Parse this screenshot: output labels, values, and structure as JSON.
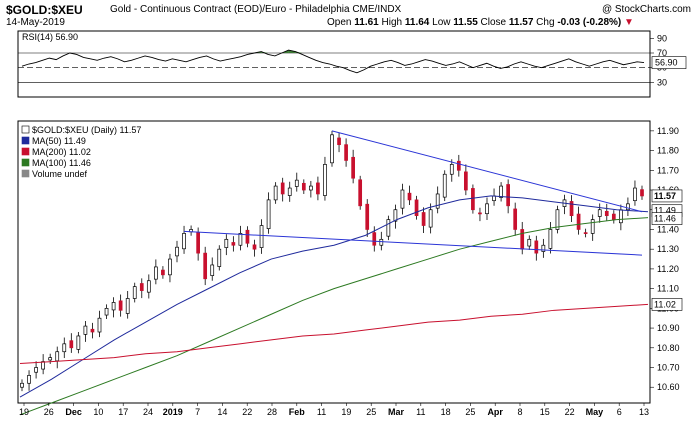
{
  "header": {
    "symbol": "$GOLD:$XEU",
    "description": "Gold - Continuous Contract (EOD)/Euro - Philadelphia CME/INDX",
    "date": "14-May-2019",
    "open_label": "Open",
    "open": "11.61",
    "high_label": "High",
    "high": "11.64",
    "low_label": "Low",
    "low": "11.55",
    "close_label": "Close",
    "close": "11.57",
    "chg_label": "Chg",
    "chg": "-0.03 (-0.28%)",
    "source": "@ StockCharts.com"
  },
  "colors": {
    "up_candle": "#ffffff",
    "down_candle": "#c8102e",
    "ma50": "#1f2a9c",
    "ma200": "#c8102e",
    "ma100": "#2d7a22",
    "trendline": "#2b35d6",
    "rsi_fill": "#3c7a35"
  },
  "chart_data": [
    {
      "type": "line",
      "name": "RSI(14) 56.90",
      "label": "RSI(14) 56.90",
      "ylim": [
        10,
        100
      ],
      "yticks": [
        90,
        70,
        50,
        30,
        10
      ],
      "reference_lines": [
        70,
        50,
        30
      ],
      "last_value_label": "56.90",
      "values": [
        52,
        55,
        57,
        60,
        63,
        61,
        66,
        70,
        68,
        64,
        62,
        60,
        63,
        65,
        62,
        58,
        60,
        63,
        66,
        64,
        61,
        59,
        62,
        60,
        58,
        61,
        64,
        66,
        62,
        59,
        61,
        63,
        65,
        68,
        70,
        72,
        68,
        66,
        70,
        74,
        72,
        68,
        64,
        60,
        57,
        55,
        52,
        50,
        46,
        43,
        47,
        52,
        55,
        58,
        60,
        57,
        53,
        55,
        58,
        61,
        59,
        56,
        53,
        55,
        58,
        54,
        50,
        53,
        56,
        52,
        49,
        51,
        55,
        58,
        55,
        52,
        50,
        53,
        56,
        59,
        62,
        58,
        55,
        52,
        55,
        58,
        60,
        57,
        54,
        56,
        58,
        56.9
      ]
    },
    {
      "type": "candlestick",
      "title": "$GOLD:$XEU (Daily) 11.57",
      "legend": [
        {
          "name": "$GOLD:$XEU (Daily) 11.57",
          "color": "#000000"
        },
        {
          "name": "MA(50) 11.49",
          "color": "#1f2a9c"
        },
        {
          "name": "MA(200) 11.02",
          "color": "#c8102e"
        },
        {
          "name": "MA(100) 11.46",
          "color": "#2d7a22"
        },
        {
          "name": "Volume undef",
          "color": "#888888"
        }
      ],
      "ylim": [
        10.52,
        11.95
      ],
      "yticks": [
        "11.90",
        "11.80",
        "11.70",
        "11.60",
        "11.50",
        "11.40",
        "11.30",
        "11.20",
        "11.10",
        "11.00",
        "10.90",
        "10.80",
        "10.70",
        "10.60"
      ],
      "x_labels": [
        "19",
        "26",
        "Dec",
        "10",
        "17",
        "24",
        "2019",
        "7",
        "14",
        "22",
        "28",
        "Feb",
        "11",
        "19",
        "25",
        "Mar",
        "11",
        "18",
        "25",
        "Apr",
        "8",
        "15",
        "22",
        "May",
        "6",
        "13"
      ],
      "x_label_bold": [
        "Dec",
        "2019",
        "Feb",
        "Mar",
        "Apr",
        "May"
      ],
      "price_badges": [
        {
          "text": "11.57",
          "value": 11.57,
          "bold": true
        },
        {
          "text": "11.49",
          "value": 11.495
        },
        {
          "text": "11.46",
          "value": 11.455
        },
        {
          "text": "11.02",
          "value": 11.02
        }
      ],
      "closes": [
        10.62,
        10.66,
        10.7,
        10.73,
        10.75,
        10.78,
        10.82,
        10.8,
        10.86,
        10.91,
        10.88,
        10.95,
        11.0,
        11.03,
        10.99,
        11.05,
        11.11,
        11.09,
        11.14,
        11.21,
        11.17,
        11.25,
        11.31,
        11.38,
        11.4,
        11.28,
        11.15,
        11.22,
        11.3,
        11.35,
        11.32,
        11.38,
        11.33,
        11.3,
        11.42,
        11.55,
        11.62,
        11.58,
        11.61,
        11.65,
        11.6,
        11.62,
        11.58,
        11.73,
        11.88,
        11.83,
        11.75,
        11.66,
        11.52,
        11.4,
        11.32,
        11.35,
        11.45,
        11.5,
        11.6,
        11.55,
        11.47,
        11.42,
        11.5,
        11.58,
        11.68,
        11.73,
        11.7,
        11.6,
        11.5,
        11.48,
        11.53,
        11.57,
        11.62,
        11.52,
        11.4,
        11.3,
        11.35,
        11.28,
        11.32,
        11.4,
        11.5,
        11.55,
        11.47,
        11.4,
        11.38,
        11.45,
        11.5,
        11.47,
        11.45,
        11.5,
        11.53,
        11.61,
        11.57
      ],
      "series": [
        {
          "name": "MA(50)",
          "label": "MA(50) 11.49",
          "start": 0,
          "values": [
            10.55,
            10.64,
            10.74,
            10.84,
            10.93,
            11.02,
            11.1,
            11.18,
            11.25,
            11.29,
            11.32,
            11.37,
            11.45,
            11.51,
            11.55,
            11.57,
            11.56,
            11.54,
            11.52,
            11.5,
            11.49
          ]
        },
        {
          "name": "MA(100)",
          "label": "MA(100) 11.46",
          "start": 0,
          "values": [
            10.46,
            10.52,
            10.58,
            10.64,
            10.7,
            10.76,
            10.83,
            10.9,
            10.97,
            11.04,
            11.1,
            11.15,
            11.2,
            11.25,
            11.3,
            11.34,
            11.38,
            11.41,
            11.43,
            11.45,
            11.46
          ]
        },
        {
          "name": "MA(200)",
          "label": "MA(200) 11.02",
          "start": 0,
          "values": [
            10.72,
            10.73,
            10.74,
            10.75,
            10.77,
            10.78,
            10.8,
            10.82,
            10.84,
            10.86,
            10.87,
            10.89,
            10.91,
            10.93,
            10.94,
            10.96,
            10.97,
            10.99,
            11.0,
            11.01,
            11.02
          ]
        }
      ],
      "trendlines": [
        {
          "from_index": 44,
          "from_value": 11.9,
          "to_index": 88,
          "to_value": 11.49
        },
        {
          "from_index": 23,
          "from_value": 11.39,
          "to_index": 88,
          "to_value": 11.27
        }
      ]
    }
  ]
}
